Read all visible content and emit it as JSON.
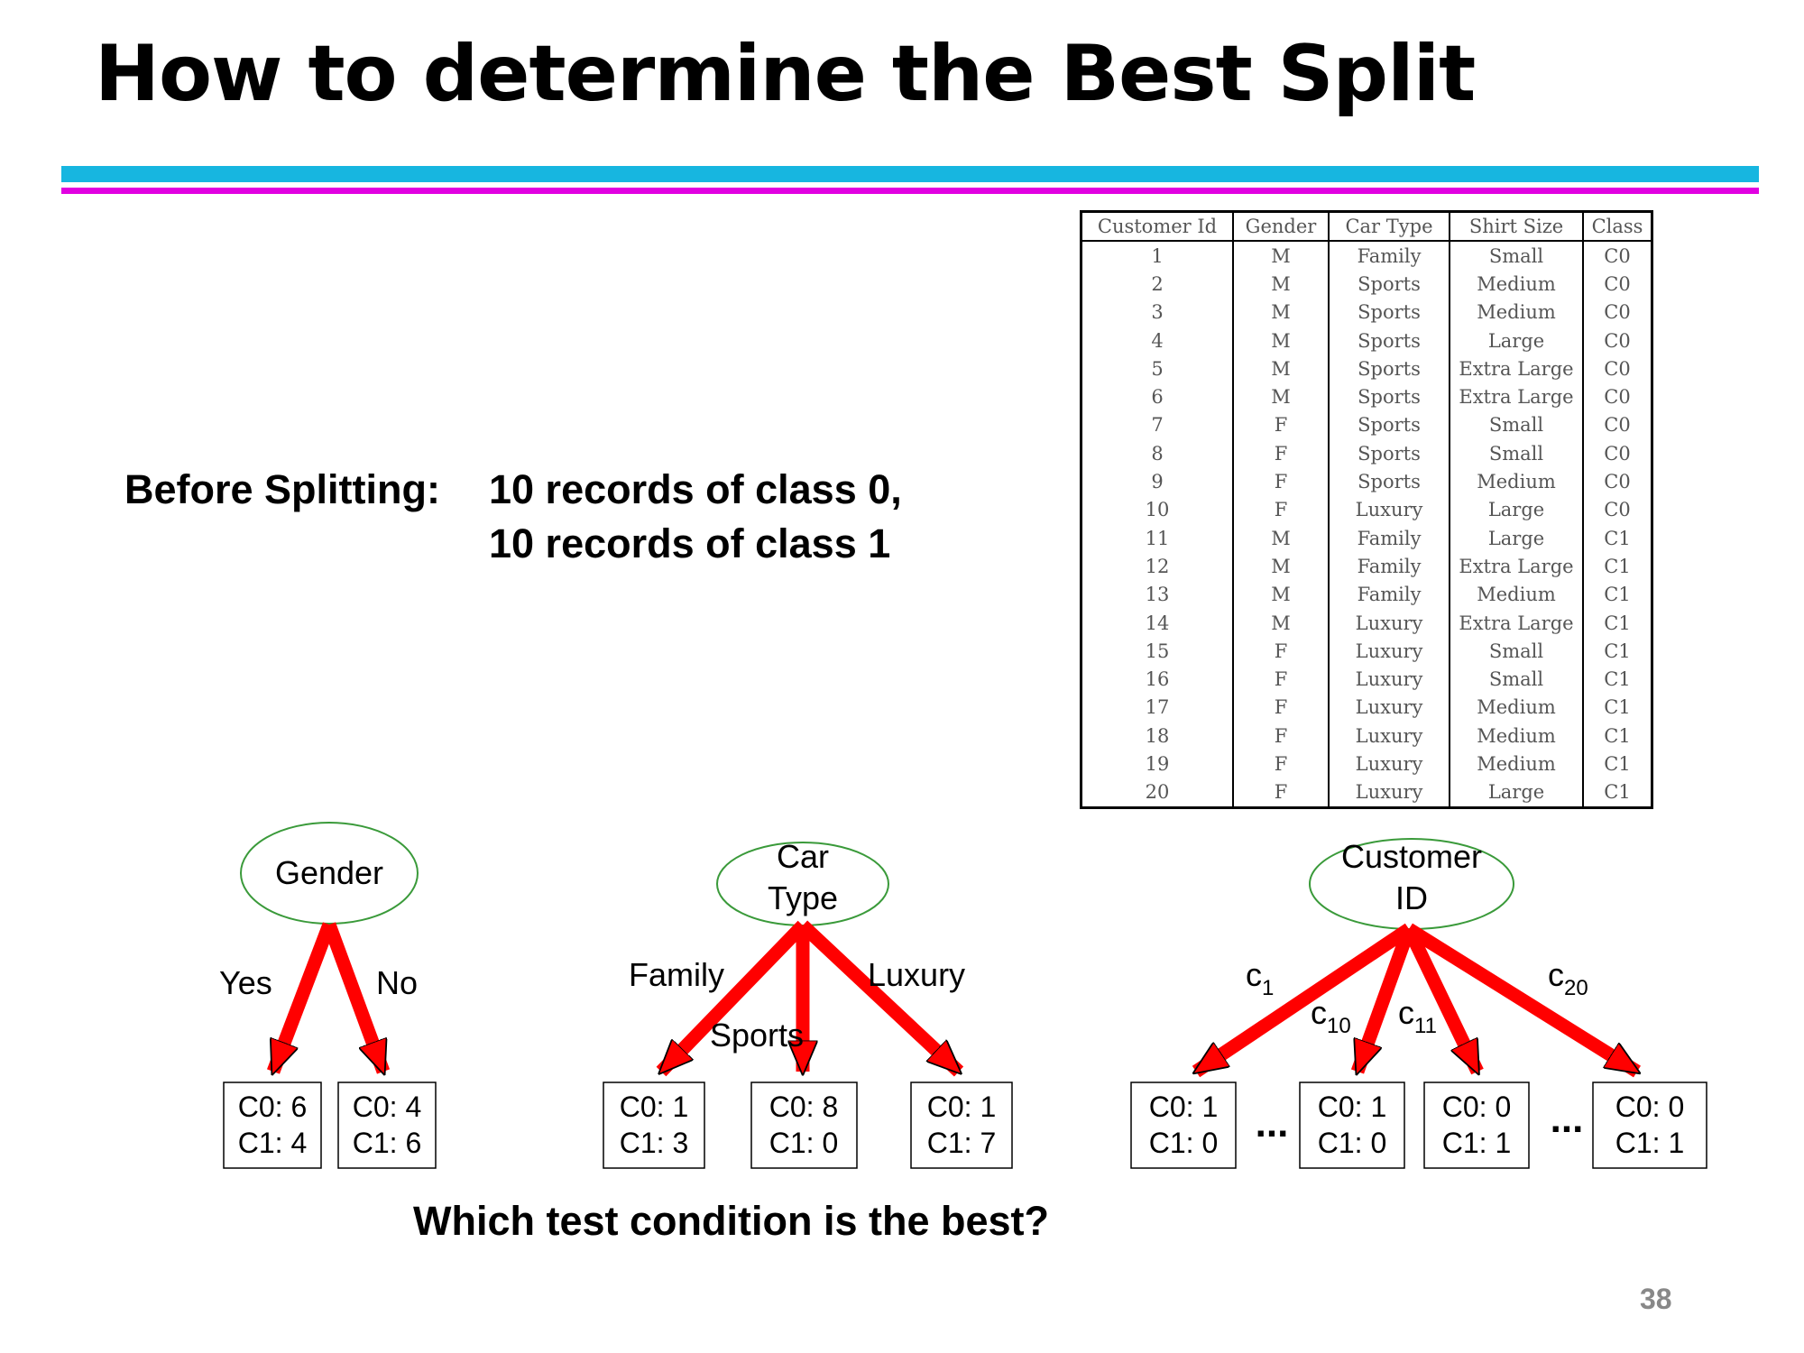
{
  "slide": {
    "title": "How to determine the Best Split",
    "page_number": "38",
    "before_splitting": {
      "label": "Before Splitting:",
      "line1": "10 records of class 0,",
      "line2": "10 records of class 1"
    },
    "question": "Which test condition is the best?"
  },
  "table": {
    "headers": [
      "Customer Id",
      "Gender",
      "Car Type",
      "Shirt Size",
      "Class"
    ],
    "rows": [
      [
        "1",
        "M",
        "Family",
        "Small",
        "C0"
      ],
      [
        "2",
        "M",
        "Sports",
        "Medium",
        "C0"
      ],
      [
        "3",
        "M",
        "Sports",
        "Medium",
        "C0"
      ],
      [
        "4",
        "M",
        "Sports",
        "Large",
        "C0"
      ],
      [
        "5",
        "M",
        "Sports",
        "Extra Large",
        "C0"
      ],
      [
        "6",
        "M",
        "Sports",
        "Extra Large",
        "C0"
      ],
      [
        "7",
        "F",
        "Sports",
        "Small",
        "C0"
      ],
      [
        "8",
        "F",
        "Sports",
        "Small",
        "C0"
      ],
      [
        "9",
        "F",
        "Sports",
        "Medium",
        "C0"
      ],
      [
        "10",
        "F",
        "Luxury",
        "Large",
        "C0"
      ],
      [
        "11",
        "M",
        "Family",
        "Large",
        "C1"
      ],
      [
        "12",
        "M",
        "Family",
        "Extra Large",
        "C1"
      ],
      [
        "13",
        "M",
        "Family",
        "Medium",
        "C1"
      ],
      [
        "14",
        "M",
        "Luxury",
        "Extra Large",
        "C1"
      ],
      [
        "15",
        "F",
        "Luxury",
        "Small",
        "C1"
      ],
      [
        "16",
        "F",
        "Luxury",
        "Small",
        "C1"
      ],
      [
        "17",
        "F",
        "Luxury",
        "Medium",
        "C1"
      ],
      [
        "18",
        "F",
        "Luxury",
        "Medium",
        "C1"
      ],
      [
        "19",
        "F",
        "Luxury",
        "Medium",
        "C1"
      ],
      [
        "20",
        "F",
        "Luxury",
        "Large",
        "C1"
      ]
    ]
  },
  "trees": {
    "gender": {
      "node": "Gender",
      "branches": [
        "Yes",
        "No"
      ],
      "leaves": [
        {
          "c0": "C0: 6",
          "c1": "C1: 4"
        },
        {
          "c0": "C0: 4",
          "c1": "C1: 6"
        }
      ]
    },
    "car_type": {
      "node_line1": "Car",
      "node_line2": "Type",
      "branches": [
        "Family",
        "Sports",
        "Luxury"
      ],
      "leaves": [
        {
          "c0": "C0: 1",
          "c1": "C1: 3"
        },
        {
          "c0": "C0: 8",
          "c1": "C1: 0"
        },
        {
          "c0": "C0: 1",
          "c1": "C1: 7"
        }
      ]
    },
    "customer_id": {
      "node_line1": "Customer",
      "node_line2": "ID",
      "branches": [
        {
          "base": "c",
          "sub": "1"
        },
        {
          "base": "c",
          "sub": "10"
        },
        {
          "base": "c",
          "sub": "11"
        },
        {
          "base": "c",
          "sub": "20"
        }
      ],
      "ellipsis": "...",
      "leaves": [
        {
          "c0": "C0: 1",
          "c1": "C1: 0"
        },
        {
          "c0": "C0: 1",
          "c1": "C1: 0"
        },
        {
          "c0": "C0: 0",
          "c1": "C1: 1"
        },
        {
          "c0": "C0: 0",
          "c1": "C1: 1"
        }
      ]
    }
  },
  "colors": {
    "rule_blue": "#17b6e0",
    "rule_magenta": "#e100e1",
    "arrow_fill": "#ff0000",
    "node_outline": "#3a9a3a"
  }
}
